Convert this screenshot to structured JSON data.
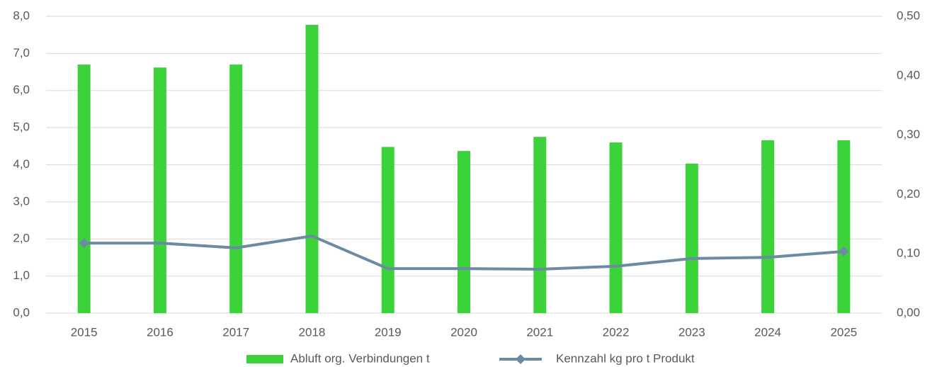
{
  "chart_data": {
    "type": "bar",
    "categories": [
      "2015",
      "2016",
      "2017",
      "2018",
      "2019",
      "2020",
      "2021",
      "2022",
      "2023",
      "2024",
      "2025"
    ],
    "series": [
      {
        "name": "Abluft org. Verbindungen t",
        "color": "#3cd33a",
        "type": "bar",
        "values": [
          6.7,
          6.62,
          6.7,
          7.77,
          4.48,
          4.37,
          4.75,
          4.6,
          4.03,
          4.66,
          4.66
        ]
      },
      {
        "name": "Kennzahl kg pro t Produkt",
        "color": "#6b8ba3",
        "type": "line",
        "axis": "y2",
        "values": [
          0.118,
          0.118,
          0.11,
          0.13,
          0.075,
          0.075,
          0.074,
          0.079,
          0.092,
          0.094,
          0.104
        ]
      }
    ],
    "ylim": [
      0,
      8
    ],
    "yticks": [
      {
        "value": 0,
        "label": "0,0"
      },
      {
        "value": 1,
        "label": "1,0"
      },
      {
        "value": 2,
        "label": "2,0"
      },
      {
        "value": 3,
        "label": "3,0"
      },
      {
        "value": 4,
        "label": "4,0"
      },
      {
        "value": 5,
        "label": "5,0"
      },
      {
        "value": 6,
        "label": "6,0"
      },
      {
        "value": 7,
        "label": "7,0"
      },
      {
        "value": 8,
        "label": "8,0"
      }
    ],
    "y2lim": [
      0,
      0.5
    ],
    "y2ticks": [
      {
        "value": 0,
        "label": "0,00"
      },
      {
        "value": 0.1,
        "label": "0,10"
      },
      {
        "value": 0.2,
        "label": "0,20"
      },
      {
        "value": 0.3,
        "label": "0,30"
      },
      {
        "value": 0.4,
        "label": "0,40"
      },
      {
        "value": 0.5,
        "label": "0,50"
      }
    ],
    "grid": true,
    "legend": "bottom"
  }
}
